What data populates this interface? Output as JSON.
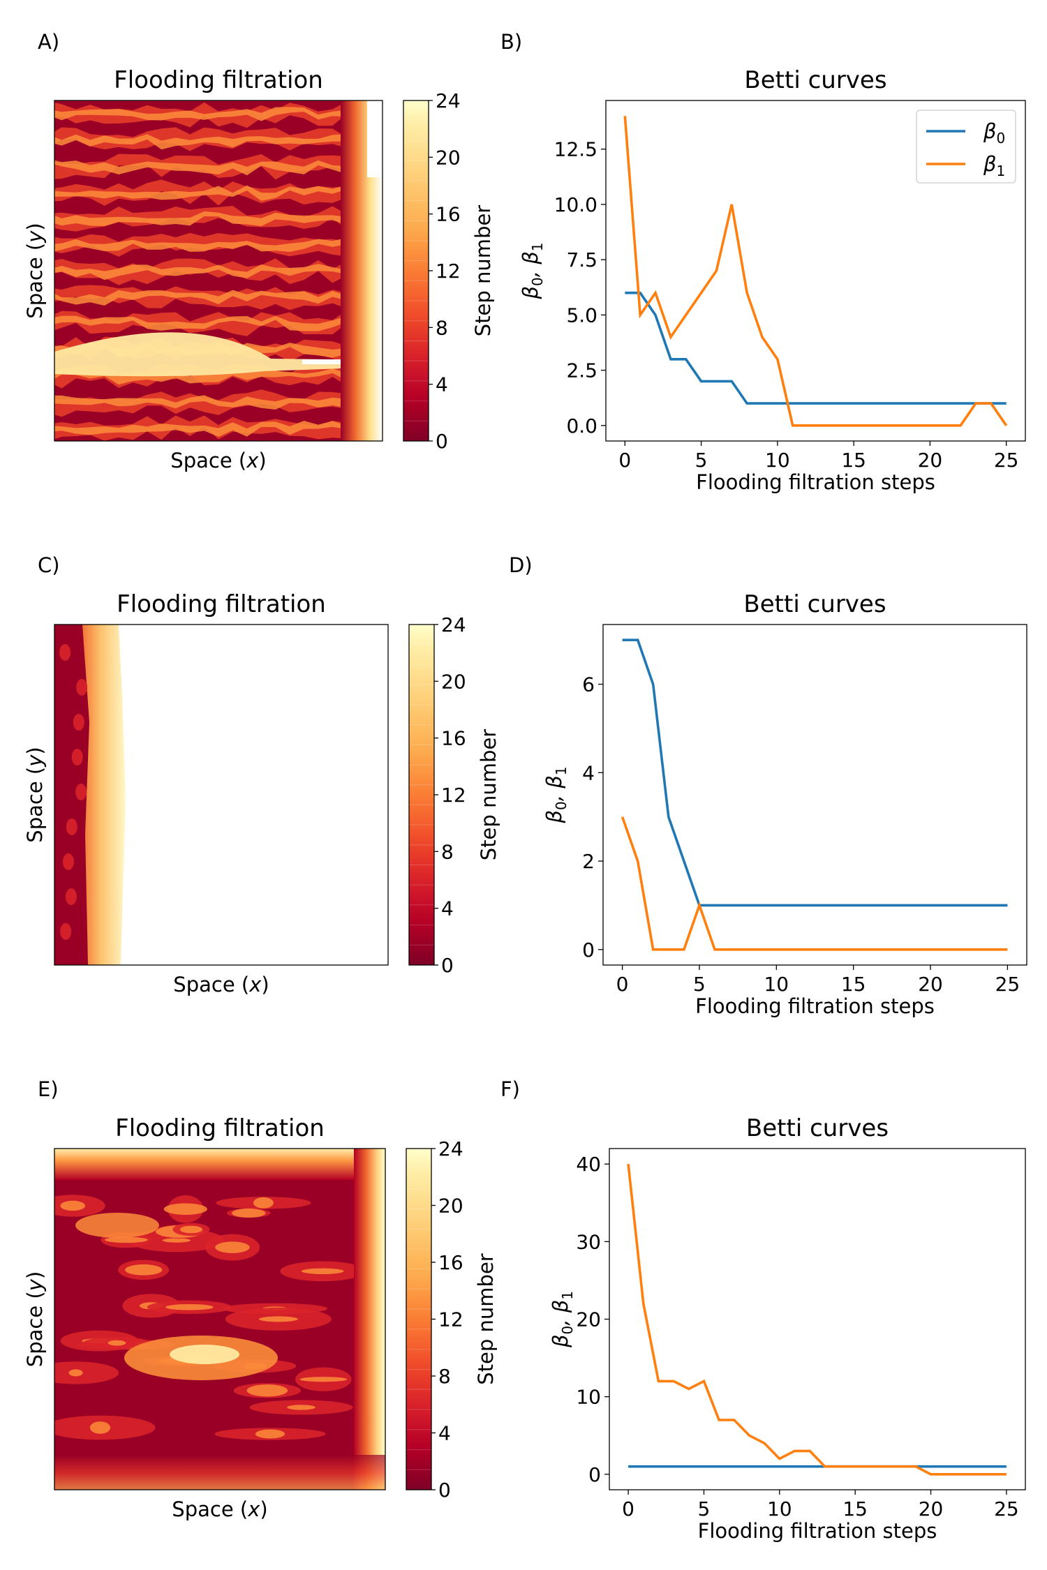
{
  "figure": {
    "panels": [
      {
        "id": "A",
        "label": "A)",
        "kind": "heatmap",
        "title": "Flooding filtration",
        "xlabel": "Space",
        "xvar": "x",
        "ylabel": "Space",
        "yvar": "y",
        "colorbar": {
          "label": "Step number",
          "ticks": [
            "0",
            "4",
            "8",
            "12",
            "16",
            "20",
            "24"
          ],
          "range": [
            0,
            24
          ]
        },
        "pattern": "striped-horizontal"
      },
      {
        "id": "C",
        "label": "C)",
        "kind": "heatmap",
        "title": "Flooding filtration",
        "xlabel": "Space",
        "xvar": "x",
        "ylabel": "Space",
        "yvar": "y",
        "colorbar": {
          "label": "Step number",
          "ticks": [
            "0",
            "4",
            "8",
            "12",
            "16",
            "20",
            "24"
          ],
          "range": [
            0,
            24
          ]
        },
        "pattern": "left-band"
      },
      {
        "id": "E",
        "label": "E)",
        "kind": "heatmap",
        "title": "Flooding filtration",
        "xlabel": "Space",
        "xvar": "x",
        "ylabel": "Space",
        "yvar": "y",
        "colorbar": {
          "label": "Step number",
          "ticks": [
            "0",
            "4",
            "8",
            "12",
            "16",
            "20",
            "24"
          ],
          "range": [
            0,
            24
          ]
        },
        "pattern": "blobby"
      }
    ]
  },
  "chart_data": [
    {
      "id": "B",
      "label": "B)",
      "type": "line",
      "title": "Betti curves",
      "xlabel": "Flooding filtration steps",
      "ylabel_parts": [
        "β",
        "0",
        ",  β",
        "1"
      ],
      "xlim": [
        -1.25,
        26.25
      ],
      "ylim": [
        -0.7,
        14.7
      ],
      "xticks": [
        0,
        5,
        10,
        15,
        20,
        25
      ],
      "xtick_labels": [
        "0",
        "5",
        "10",
        "15",
        "20",
        "25"
      ],
      "yticks": [
        0,
        2.5,
        5,
        7.5,
        10,
        12.5
      ],
      "ytick_labels": [
        "0.0",
        "2.5",
        "5.0",
        "7.5",
        "10.0",
        "12.5"
      ],
      "legend": {
        "position": "top-right",
        "entries": [
          {
            "base": "β",
            "sub": "0",
            "color": "#1f77b4"
          },
          {
            "base": "β",
            "sub": "1",
            "color": "#ff7f0e"
          }
        ]
      },
      "x": [
        0,
        1,
        2,
        3,
        4,
        5,
        6,
        7,
        8,
        9,
        10,
        11,
        12,
        13,
        14,
        15,
        16,
        17,
        18,
        19,
        20,
        21,
        22,
        23,
        24,
        25
      ],
      "series": [
        {
          "name": "β0",
          "color": "#1f77b4",
          "values": [
            6,
            6,
            5,
            3,
            3,
            2,
            2,
            2,
            1,
            1,
            1,
            1,
            1,
            1,
            1,
            1,
            1,
            1,
            1,
            1,
            1,
            1,
            1,
            1,
            1,
            1
          ]
        },
        {
          "name": "β1",
          "color": "#ff7f0e",
          "values": [
            14,
            5,
            6,
            4,
            5,
            6,
            7,
            10,
            6,
            4,
            3,
            0,
            0,
            0,
            0,
            0,
            0,
            0,
            0,
            0,
            0,
            0,
            0,
            1,
            1,
            0
          ]
        }
      ]
    },
    {
      "id": "D",
      "label": "D)",
      "type": "line",
      "title": "Betti curves",
      "xlabel": "Flooding filtration steps",
      "ylabel_parts": [
        "β",
        "0",
        ",  β",
        "1"
      ],
      "xlim": [
        -1.25,
        26.25
      ],
      "ylim": [
        -0.35,
        7.35
      ],
      "xticks": [
        0,
        5,
        10,
        15,
        20,
        25
      ],
      "xtick_labels": [
        "0",
        "5",
        "10",
        "15",
        "20",
        "25"
      ],
      "yticks": [
        0,
        2,
        4,
        6
      ],
      "ytick_labels": [
        "0",
        "2",
        "4",
        "6"
      ],
      "x": [
        0,
        1,
        2,
        3,
        4,
        5,
        6,
        7,
        8,
        9,
        10,
        11,
        12,
        13,
        14,
        15,
        16,
        17,
        18,
        19,
        20,
        21,
        22,
        23,
        24,
        25
      ],
      "series": [
        {
          "name": "β0",
          "color": "#1f77b4",
          "values": [
            7,
            7,
            6,
            3,
            2,
            1,
            1,
            1,
            1,
            1,
            1,
            1,
            1,
            1,
            1,
            1,
            1,
            1,
            1,
            1,
            1,
            1,
            1,
            1,
            1,
            1
          ]
        },
        {
          "name": "β1",
          "color": "#ff7f0e",
          "values": [
            3,
            2,
            0,
            0,
            0,
            1,
            0,
            0,
            0,
            0,
            0,
            0,
            0,
            0,
            0,
            0,
            0,
            0,
            0,
            0,
            0,
            0,
            0,
            0,
            0,
            0
          ]
        }
      ]
    },
    {
      "id": "F",
      "label": "F)",
      "type": "line",
      "title": "Betti curves",
      "xlabel": "Flooding filtration steps",
      "ylabel_parts": [
        "β",
        "0",
        ",  β",
        "1"
      ],
      "xlim": [
        -1.25,
        26.25
      ],
      "ylim": [
        -2.0,
        42.0
      ],
      "xticks": [
        0,
        5,
        10,
        15,
        20,
        25
      ],
      "xtick_labels": [
        "0",
        "5",
        "10",
        "15",
        "20",
        "25"
      ],
      "yticks": [
        0,
        10,
        20,
        30,
        40
      ],
      "ytick_labels": [
        "0",
        "10",
        "20",
        "30",
        "40"
      ],
      "x": [
        0,
        1,
        2,
        3,
        4,
        5,
        6,
        7,
        8,
        9,
        10,
        11,
        12,
        13,
        14,
        15,
        16,
        17,
        18,
        19,
        20,
        21,
        22,
        23,
        24,
        25
      ],
      "series": [
        {
          "name": "β0",
          "color": "#1f77b4",
          "values": [
            1,
            1,
            1,
            1,
            1,
            1,
            1,
            1,
            1,
            1,
            1,
            1,
            1,
            1,
            1,
            1,
            1,
            1,
            1,
            1,
            1,
            1,
            1,
            1,
            1,
            1
          ]
        },
        {
          "name": "β1",
          "color": "#ff7f0e",
          "values": [
            40,
            22,
            12,
            12,
            11,
            12,
            7,
            7,
            5,
            4,
            2,
            3,
            3,
            1,
            1,
            1,
            1,
            1,
            1,
            1,
            0,
            0,
            0,
            0,
            0,
            0
          ]
        }
      ]
    }
  ]
}
